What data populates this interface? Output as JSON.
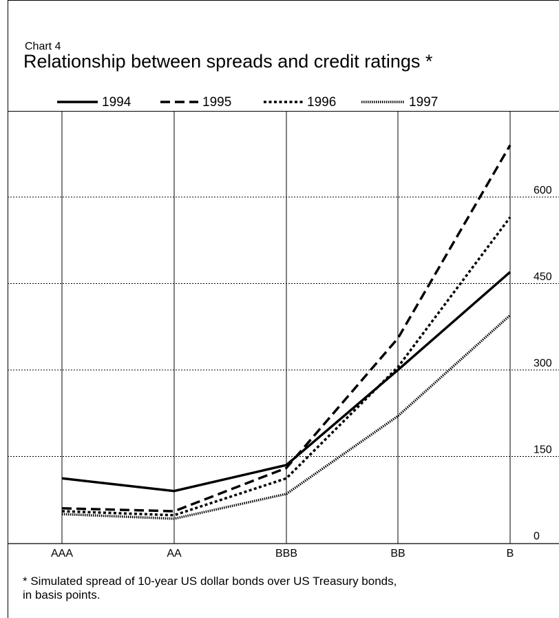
{
  "chart_label": "Chart 4",
  "title": "Relationship between spreads and credit ratings *",
  "chart_data": {
    "type": "line",
    "title": "Relationship between spreads and credit ratings *",
    "categories": [
      "AAA",
      "AA",
      "BBB",
      "BB",
      "B"
    ],
    "series": [
      {
        "name": "1994",
        "style": "solid",
        "values": [
          112,
          90,
          135,
          300,
          470
        ]
      },
      {
        "name": "1995",
        "style": "dashed",
        "values": [
          60,
          55,
          130,
          355,
          690
        ]
      },
      {
        "name": "1996",
        "style": "dotted",
        "values": [
          55,
          48,
          112,
          305,
          565
        ]
      },
      {
        "name": "1997",
        "style": "fine-dotted",
        "values": [
          50,
          42,
          85,
          220,
          395
        ]
      }
    ],
    "yticks": [
      0,
      150,
      300,
      450,
      600
    ],
    "ytick_labels": [
      "0",
      "150",
      "300",
      "450",
      "600"
    ],
    "ylim": [
      0,
      720
    ],
    "xlabel": "",
    "ylabel": "",
    "grid": true,
    "legend_position": "top"
  },
  "footnote_line1": "* Simulated spread of 10-year US dollar bonds over US Treasury bonds,",
  "footnote_line2": "in basis points.",
  "colors": {
    "line": "#000000",
    "background": "#ffffff"
  }
}
